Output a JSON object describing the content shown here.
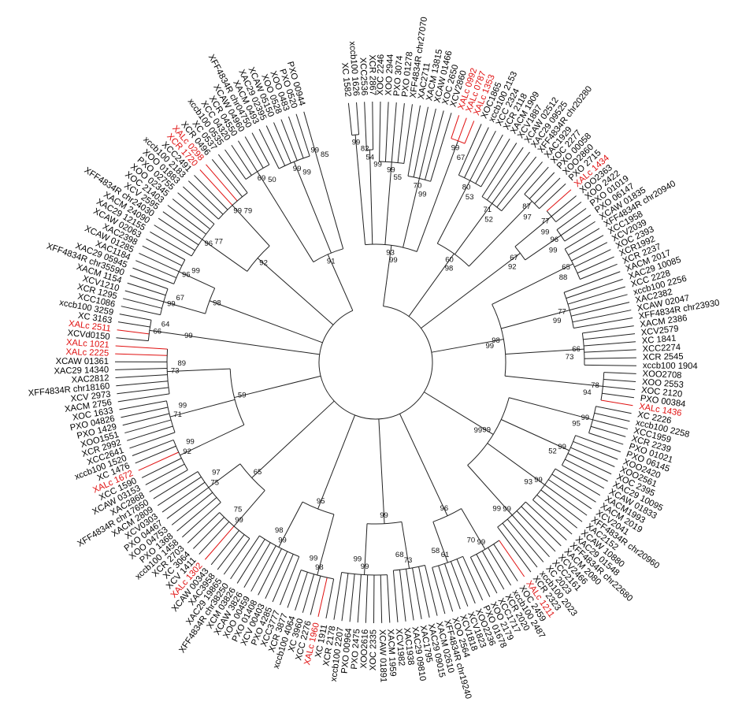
{
  "colors": {
    "line": "#222222",
    "highlight": "#e01010",
    "background": "#ffffff"
  },
  "tree": {
    "type": "circular-phylogenetic-tree",
    "leaves": [
      {
        "label": "XC 1582"
      },
      {
        "label": "xccb100 1626"
      },
      {
        "label": "XCC2536"
      },
      {
        "label": "XCR 2867"
      },
      {
        "label": "XOC 2246"
      },
      {
        "label": "XOO 2944"
      },
      {
        "label": "PXO 3074"
      },
      {
        "label": "PXO 01278"
      },
      {
        "label": "XFF4834R chr27070"
      },
      {
        "label": "XAC2711"
      },
      {
        "label": "XACM 13815"
      },
      {
        "label": "XCAW 01466"
      },
      {
        "label": "XOC 2650"
      },
      {
        "label": "XCV2860"
      },
      {
        "label": "XALc 0992",
        "highlight": true
      },
      {
        "label": "XALc 0787",
        "highlight": true
      },
      {
        "label": "XALc 1353",
        "highlight": true
      },
      {
        "label": "XOC1865"
      },
      {
        "label": "xccb100 2153"
      },
      {
        "label": "XCC 2324"
      },
      {
        "label": "XCR 2118"
      },
      {
        "label": "XACM 1909"
      },
      {
        "label": "XCV1887"
      },
      {
        "label": "XCAW 02512"
      },
      {
        "label": "XAC29 09525"
      },
      {
        "label": "XFF4834R chr20280"
      },
      {
        "label": "XAC1929"
      },
      {
        "label": "XOC 2277"
      },
      {
        "label": "PXO 00058"
      },
      {
        "label": "XOO2860"
      },
      {
        "label": "PXO 2715"
      },
      {
        "label": "XALc 1434",
        "highlight": true
      },
      {
        "label": "XOO2363"
      },
      {
        "label": "XOO 2422"
      },
      {
        "label": "PXO 01019"
      },
      {
        "label": "PXO 06147"
      },
      {
        "label": "XCAW 01835"
      },
      {
        "label": "XFF4834R chr20940"
      },
      {
        "label": "XCC1958"
      },
      {
        "label": "XCV2039"
      },
      {
        "label": "XOC 2393"
      },
      {
        "label": "XCR1992"
      },
      {
        "label": "XCR 2237"
      },
      {
        "label": "XACM 2017"
      },
      {
        "label": "XAC29 10085"
      },
      {
        "label": "XCC 2228"
      },
      {
        "label": "xccb100 2256"
      },
      {
        "label": "XAC2382"
      },
      {
        "label": "XCAW 02047"
      },
      {
        "label": "XFF4834R chr23930"
      },
      {
        "label": "XACM 2386"
      },
      {
        "label": "XCV2579"
      },
      {
        "label": "XC 1841"
      },
      {
        "label": "XCC2274"
      },
      {
        "label": "XCR 2545"
      },
      {
        "label": "xccb100 1904"
      },
      {
        "label": "XOO2708"
      },
      {
        "label": "XOO 2553"
      },
      {
        "label": "XOC 2120"
      },
      {
        "label": "PXO 00384"
      },
      {
        "label": "XALc 1436",
        "highlight": true
      },
      {
        "label": "XC 2226"
      },
      {
        "label": "xccb100 2258"
      },
      {
        "label": "XCC1959"
      },
      {
        "label": "XCR 2239"
      },
      {
        "label": "PXO 01021"
      },
      {
        "label": "PXO 06145"
      },
      {
        "label": "XOO2420"
      },
      {
        "label": "XOO2561"
      },
      {
        "label": "XOC 2395"
      },
      {
        "label": "XAC29 10095"
      },
      {
        "label": "XCAW 01833"
      },
      {
        "label": "XACM1993"
      },
      {
        "label": "XACM 2019"
      },
      {
        "label": "XCV2041"
      },
      {
        "label": "XFF4834R chr20960"
      },
      {
        "label": "XAC2152"
      },
      {
        "label": "XCAW 10880"
      },
      {
        "label": "XAC29 01548"
      },
      {
        "label": "XFF4834R chr22680"
      },
      {
        "label": "XACM 2080"
      },
      {
        "label": "XCV2466"
      },
      {
        "label": "XCC2161"
      },
      {
        "label": "XC 2023"
      },
      {
        "label": "xccb100 2023"
      },
      {
        "label": "XCR 2323"
      },
      {
        "label": "XALc 1211",
        "highlight": true
      },
      {
        "label": "XOC 2459"
      },
      {
        "label": "xccb100 2487"
      },
      {
        "label": "XCR 2020"
      },
      {
        "label": "XCC1717"
      },
      {
        "label": "XOO 2179"
      },
      {
        "label": "PXO 01678"
      },
      {
        "label": "XOO2236"
      },
      {
        "label": "XCV1823"
      },
      {
        "label": "XCV1818"
      },
      {
        "label": "XOO 2564"
      },
      {
        "label": "XFF4834R chr19240"
      },
      {
        "label": "XACM 02610"
      },
      {
        "label": "XAC29 09015"
      },
      {
        "label": "XAC1795"
      },
      {
        "label": "XAC29 09810"
      },
      {
        "label": "XAC1938"
      },
      {
        "label": "XCV1982"
      },
      {
        "label": "XACM 1959"
      },
      {
        "label": "XCAW 01891"
      },
      {
        "label": "XOC 2335"
      },
      {
        "label": "XOO2616"
      },
      {
        "label": "PXO 2475"
      },
      {
        "label": "PXO 00964"
      },
      {
        "label": "xccb100 2207"
      },
      {
        "label": "XCR 2178"
      },
      {
        "label": "XC 1911"
      },
      {
        "label": "XALc 1960",
        "highlight": true
      },
      {
        "label": "XCC 2276"
      },
      {
        "label": "XC 3960"
      },
      {
        "label": "xccb100 4064"
      },
      {
        "label": "XCR 3877"
      },
      {
        "label": "XCC3777"
      },
      {
        "label": "PXO 4285"
      },
      {
        "label": "XCV 00403"
      },
      {
        "label": "PXO 01408"
      },
      {
        "label": "XOO 00459"
      },
      {
        "label": "XCAW 3826"
      },
      {
        "label": "XCM 03826"
      },
      {
        "label": "XFF4834R chr38250"
      },
      {
        "label": "XAC29 19865"
      },
      {
        "label": "XAC3958"
      },
      {
        "label": "XCAW 00343"
      },
      {
        "label": "XALc 1302",
        "highlight": true
      },
      {
        "label": "XCV 1411"
      },
      {
        "label": "XC 3064"
      },
      {
        "label": "XCR 2703"
      },
      {
        "label": "xccb100 1458"
      },
      {
        "label": "PXO 1368"
      },
      {
        "label": "XOO 04753"
      },
      {
        "label": "PXO 04467"
      },
      {
        "label": "XCV0303"
      },
      {
        "label": "XACM 2809"
      },
      {
        "label": "XFF4834R chr17650"
      },
      {
        "label": "XAC2868"
      },
      {
        "label": "XCAW 03153"
      },
      {
        "label": "XCC 1590"
      },
      {
        "label": "XALc 1672",
        "highlight": true
      },
      {
        "label": "XC 1476"
      },
      {
        "label": "xccb100 1520"
      },
      {
        "label": "XCC2641"
      },
      {
        "label": "XCR 2992"
      },
      {
        "label": "XOO1551"
      },
      {
        "label": "PXO 1429"
      },
      {
        "label": "PXO 04826"
      },
      {
        "label": "XOC 1633"
      },
      {
        "label": "XACM 2756"
      },
      {
        "label": "XCV 2973"
      },
      {
        "label": "XFF4834R chr18160"
      },
      {
        "label": "XAC2812"
      },
      {
        "label": "XAC29 14340"
      },
      {
        "label": "XCAW 01361"
      },
      {
        "label": "XALc 2225",
        "highlight": true
      },
      {
        "label": "XALc 1021",
        "highlight": true
      },
      {
        "label": "XCVd0150"
      },
      {
        "label": "XALc 2511",
        "highlight": true
      },
      {
        "label": "XC 3163"
      },
      {
        "label": "xccb100 3259"
      },
      {
        "label": "XCC1086"
      },
      {
        "label": "XCR 1295"
      },
      {
        "label": "XCV1210"
      },
      {
        "label": "XACM 1154"
      },
      {
        "label": "XFF4834R chr35590"
      },
      {
        "label": "XAC29 05945"
      },
      {
        "label": "XAC1184"
      },
      {
        "label": "XCAW 01285"
      },
      {
        "label": "XAC2398"
      },
      {
        "label": "XCAW 02063"
      },
      {
        "label": "XAC29 12155"
      },
      {
        "label": "XACM 24090"
      },
      {
        "label": "XFF4834R chr24030"
      },
      {
        "label": "XCV 2595"
      },
      {
        "label": "XOC 21403"
      },
      {
        "label": "XOO 02345"
      },
      {
        "label": "PXO 02755"
      },
      {
        "label": "XOO 01883"
      },
      {
        "label": "xccb100 2183"
      },
      {
        "label": "XCC2491"
      },
      {
        "label": "XCR 1720",
        "highlight": true
      },
      {
        "label": "XALc 0298",
        "highlight": true
      },
      {
        "label": "XCR 0496"
      },
      {
        "label": "XC 0537"
      },
      {
        "label": "xccb100 0535"
      },
      {
        "label": "XCC 04320"
      },
      {
        "label": "XCR 04550"
      },
      {
        "label": "XCAW 04960"
      },
      {
        "label": "XFF4834R chr04750"
      },
      {
        "label": "XACM 0493"
      },
      {
        "label": "XAC29 02395"
      },
      {
        "label": "XCAW 05150"
      },
      {
        "label": "XOO 0528"
      },
      {
        "label": "XOO 0483"
      },
      {
        "label": "PXO 0520"
      },
      {
        "label": "PXO 00944"
      }
    ],
    "bootstrap_values": [
      "99",
      "54",
      "99",
      "70",
      "99",
      "80",
      "71",
      "87",
      "77",
      "96",
      "65",
      "77",
      "66",
      "78",
      "99",
      "99",
      "99",
      "99",
      "99",
      "61",
      "73",
      "99",
      "98",
      "99",
      "99",
      "75",
      "92",
      "71",
      "73",
      "66",
      "99",
      "96",
      "96",
      "99",
      "69",
      "99",
      "99",
      "93",
      "60",
      "67",
      "98",
      "99",
      "96",
      "99",
      "95",
      "65",
      "59",
      "99",
      "98",
      "92",
      "91",
      "82",
      "99",
      "55",
      "99",
      "67",
      "53",
      "52",
      "97",
      "99",
      "99",
      "88",
      "99",
      "73",
      "94",
      "95",
      "52",
      "93",
      "99",
      "70",
      "58",
      "68",
      "99",
      "99",
      "98",
      "75",
      "97",
      "99",
      "99",
      "89",
      "64",
      "67",
      "99",
      "77",
      "79",
      "50",
      "99",
      "85",
      "99",
      "98",
      "92",
      "99",
      "99"
    ]
  }
}
